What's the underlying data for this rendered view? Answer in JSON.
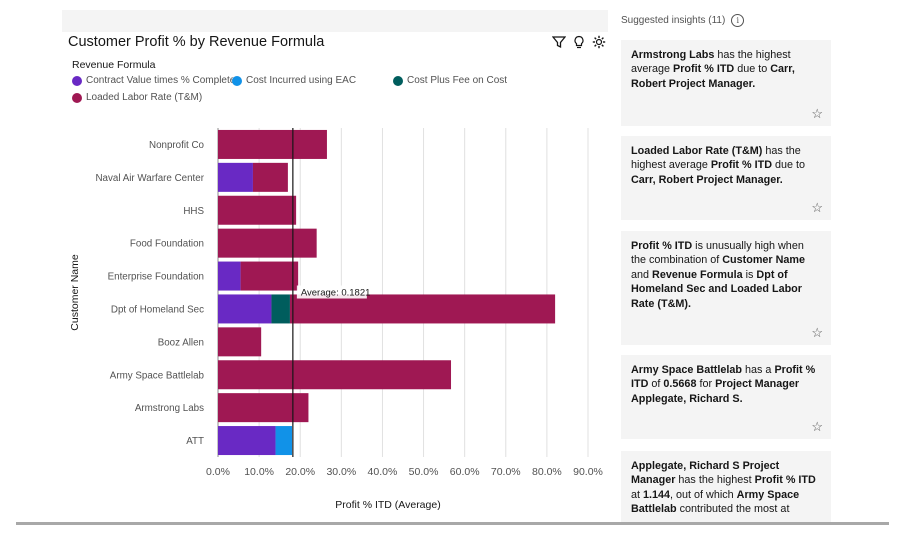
{
  "chart_title": "Customer Profit % by Revenue Formula",
  "toolbar": {
    "filter_icon": "filter-icon",
    "insight_icon": "lightbulb-icon",
    "settings_icon": "settings-icon"
  },
  "legend": {
    "title": "Revenue Formula",
    "items": [
      {
        "label": "Contract Value times % Complete",
        "color": "#6929c4"
      },
      {
        "label": "Cost Incurred using EAC",
        "color": "#1192e8"
      },
      {
        "label": "Cost Plus Fee on Cost",
        "color": "#005d5d"
      },
      {
        "label": "Loaded Labor Rate (T&M)",
        "color": "#9f1853"
      }
    ]
  },
  "chart_data": {
    "type": "bar",
    "orientation": "horizontal",
    "stacked": true,
    "xlabel": "Profit % ITD (Average)",
    "ylabel": "Customer Name",
    "xlim": [
      0,
      0.9
    ],
    "x_ticks": [
      "0.0%",
      "10.0%",
      "20.0%",
      "30.0%",
      "40.0%",
      "50.0%",
      "60.0%",
      "70.0%",
      "80.0%",
      "90.0%"
    ],
    "grid": true,
    "categories": [
      "Nonprofit Co",
      "Naval Air Warfare Center",
      "HHS",
      "Food Foundation",
      "Enterprise Foundation",
      "Dpt of Homeland Sec",
      "Booz Allen",
      "Army Space Battlelab",
      "Armstrong Labs",
      "ATT"
    ],
    "series": [
      {
        "name": "Contract Value times % Complete",
        "color": "#6929c4",
        "values": [
          0,
          0.085,
          0,
          0,
          0.055,
          0.13,
          0,
          0,
          0,
          0.14
        ]
      },
      {
        "name": "Cost Incurred using EAC",
        "color": "#1192e8",
        "values": [
          0,
          0,
          0,
          0,
          0,
          0,
          0,
          0,
          0,
          0.04
        ]
      },
      {
        "name": "Cost Plus Fee on Cost",
        "color": "#005d5d",
        "values": [
          0,
          0,
          0,
          0,
          0,
          0.045,
          0,
          0,
          0,
          0
        ]
      },
      {
        "name": "Loaded Labor Rate (T&M)",
        "color": "#9f1853",
        "values": [
          0.265,
          0.085,
          0.19,
          0.24,
          0.14,
          0.645,
          0.105,
          0.5668,
          0.22,
          0
        ]
      }
    ],
    "average": {
      "value": 0.1821,
      "label": "Average: 0.1821"
    }
  },
  "insights": {
    "header": "Suggested insights (11)",
    "cards": [
      {
        "segments": [
          {
            "text": "Armstrong Labs",
            "bold": true
          },
          {
            "text": " has the highest average ",
            "bold": false
          },
          {
            "text": "Profit % ITD",
            "bold": true
          },
          {
            "text": " due to ",
            "bold": false
          },
          {
            "text": "Carr, Robert Project Manager.",
            "bold": true
          }
        ]
      },
      {
        "segments": [
          {
            "text": "Loaded Labor Rate (T&M)",
            "bold": true
          },
          {
            "text": " has the highest average ",
            "bold": false
          },
          {
            "text": "Profit % ITD",
            "bold": true
          },
          {
            "text": " due to ",
            "bold": false
          },
          {
            "text": "Carr, Robert Project Manager.",
            "bold": true
          }
        ]
      },
      {
        "segments": [
          {
            "text": "Profit % ITD",
            "bold": true
          },
          {
            "text": " is unusually high when the combination of ",
            "bold": false
          },
          {
            "text": "Customer Name",
            "bold": true
          },
          {
            "text": " and ",
            "bold": false
          },
          {
            "text": "Revenue Formula",
            "bold": true
          },
          {
            "text": " is ",
            "bold": false
          },
          {
            "text": "Dpt of Homeland Sec and Loaded Labor Rate (T&M).",
            "bold": true
          }
        ]
      },
      {
        "segments": [
          {
            "text": "Army Space Battlelab",
            "bold": true
          },
          {
            "text": " has a ",
            "bold": false
          },
          {
            "text": "Profit % ITD",
            "bold": true
          },
          {
            "text": " of ",
            "bold": false
          },
          {
            "text": "0.5668",
            "bold": true
          },
          {
            "text": " for ",
            "bold": false
          },
          {
            "text": "Project Manager Applegate, Richard S.",
            "bold": true
          }
        ]
      },
      {
        "segments": [
          {
            "text": "Applegate, Richard S Project Manager",
            "bold": true
          },
          {
            "text": " has the highest ",
            "bold": false
          },
          {
            "text": "Profit % ITD",
            "bold": true
          },
          {
            "text": " at ",
            "bold": false
          },
          {
            "text": "1.144",
            "bold": true
          },
          {
            "text": ", out of which ",
            "bold": false
          },
          {
            "text": "Army Space Battlelab",
            "bold": true
          },
          {
            "text": " contributed the most at",
            "bold": false
          }
        ]
      }
    ]
  }
}
